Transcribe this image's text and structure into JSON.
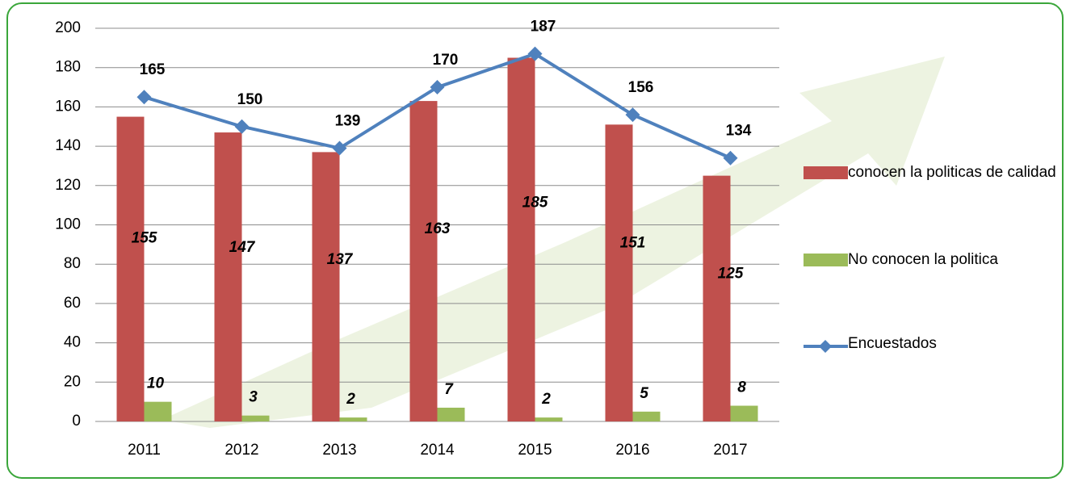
{
  "chart_data": {
    "type": "bar",
    "categories": [
      "2011",
      "2012",
      "2013",
      "2014",
      "2015",
      "2016",
      "2017"
    ],
    "series": [
      {
        "name": "conocen la politicas de calidad",
        "type": "bar",
        "color": "#c0504d",
        "values": [
          155,
          147,
          137,
          163,
          185,
          151,
          125
        ]
      },
      {
        "name": "No conocen la politica",
        "type": "bar",
        "color": "#9bbb59",
        "values": [
          10,
          3,
          2,
          7,
          2,
          5,
          8
        ]
      },
      {
        "name": "Encuestados",
        "type": "line",
        "color": "#4f81bd",
        "values": [
          165,
          150,
          139,
          170,
          187,
          156,
          134
        ]
      }
    ],
    "ylim": [
      0,
      200
    ],
    "yticks": [
      0,
      20,
      40,
      60,
      80,
      100,
      120,
      140,
      160,
      180,
      200
    ],
    "grid": true,
    "legend": "right"
  }
}
